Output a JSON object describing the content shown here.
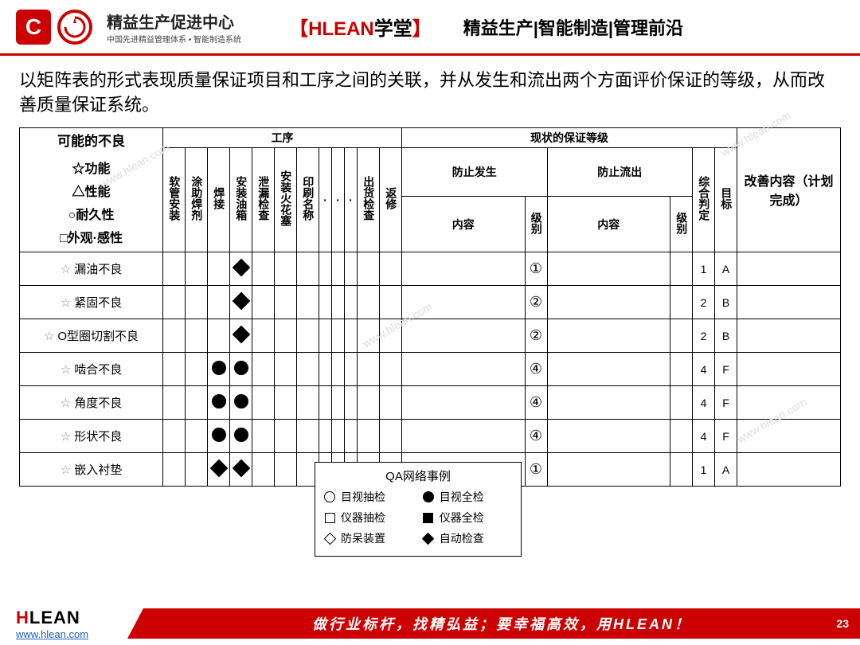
{
  "header": {
    "logo_title": "精益生产促进中心",
    "logo_sub": "中国先进精益管理体系 • 智能制造系统",
    "brand_bracket_l": "【",
    "brand_hlean": "HLEAN",
    "brand_xuetang": "学堂",
    "brand_bracket_r": "】",
    "nav": "精益生产|智能制造|管理前沿"
  },
  "description": "以矩阵表的形式表现质量保证项目和工序之间的关联，并从发生和流出两个方面评价保证的等级，从而改善质量保证系统。",
  "table": {
    "left_header_title": "可能的不良",
    "left_header_lines": [
      "☆功能",
      "△性能",
      "○耐久性",
      "□外观·感性"
    ],
    "process_group": "工序",
    "assurance_group": "现状的保证等级",
    "improvement_group": "改善内容（计划完成）",
    "processes": [
      "软管安装",
      "涂助焊剂",
      "焊接",
      "安装油箱",
      "泄漏检查",
      "安装火花塞",
      "印刷名称",
      "·",
      "·",
      "·",
      "出货检查",
      "返修"
    ],
    "prevent_occur": "防止发生",
    "prevent_outflow": "防止流出",
    "content": "内容",
    "level": "级别",
    "overall": "综合判定",
    "target": "目标",
    "rows": [
      {
        "star": "☆",
        "name": "漏油不良",
        "marks": {
          "4": "diamond"
        },
        "occur_level": "①",
        "outflow_level": "",
        "overall": "1",
        "target": "A"
      },
      {
        "star": "☆",
        "name": "紧固不良",
        "marks": {
          "4": "diamond"
        },
        "occur_level": "②",
        "outflow_level": "",
        "overall": "2",
        "target": "B"
      },
      {
        "star": "☆",
        "name": "O型圈切割不良",
        "marks": {
          "4": "diamond"
        },
        "occur_level": "②",
        "outflow_level": "",
        "overall": "2",
        "target": "B"
      },
      {
        "star": "☆",
        "name": "啮合不良",
        "marks": {
          "3": "circle",
          "4": "circle"
        },
        "occur_level": "④",
        "outflow_level": "",
        "overall": "4",
        "target": "F"
      },
      {
        "star": "☆",
        "name": "角度不良",
        "marks": {
          "3": "circle",
          "4": "circle"
        },
        "occur_level": "④",
        "outflow_level": "",
        "overall": "4",
        "target": "F"
      },
      {
        "star": "☆",
        "name": "形状不良",
        "marks": {
          "3": "circle",
          "4": "circle"
        },
        "occur_level": "④",
        "outflow_level": "",
        "overall": "4",
        "target": "F"
      },
      {
        "star": "☆",
        "name": "嵌入衬垫",
        "marks": {
          "3": "diamond",
          "4": "diamond"
        },
        "occur_level": "①",
        "outflow_level": "",
        "overall": "1",
        "target": "A"
      }
    ]
  },
  "legend": {
    "title": "QA网络事例",
    "items": [
      [
        "○",
        "目视抽检"
      ],
      [
        "●",
        "目视全检"
      ],
      [
        "□",
        "仪器抽检"
      ],
      [
        "■",
        "仪器全检"
      ],
      [
        "◇",
        "防呆装置"
      ],
      [
        "◆",
        "自动检查"
      ]
    ]
  },
  "footer": {
    "brand_h": "H",
    "brand_rest": "LEAN",
    "url": "www.hlean.com",
    "slogan": "做行业标杆，找精弘益；要幸福高效，用HLEAN！",
    "page": "23"
  },
  "colors": {
    "red": "#c00",
    "text": "#000"
  }
}
